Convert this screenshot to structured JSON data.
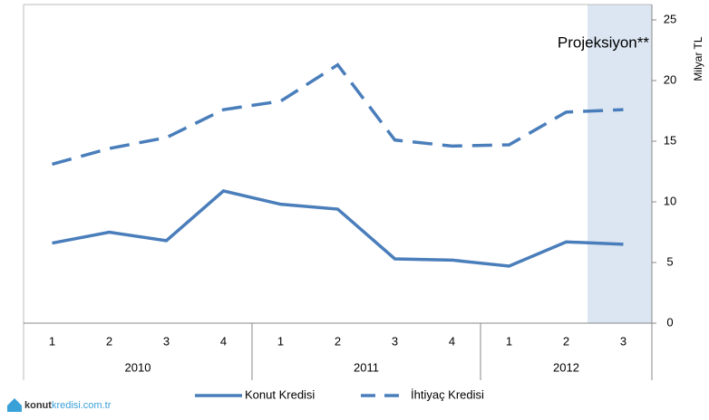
{
  "chart_data": {
    "type": "line",
    "annotation": "Projeksiyon**",
    "y_axis_label": "Milyar TL",
    "categories": [
      "1",
      "2",
      "3",
      "4",
      "1",
      "2",
      "3",
      "4",
      "1",
      "2",
      "3"
    ],
    "category_groups": [
      "2010",
      "2011",
      "2012"
    ],
    "series": [
      {
        "name": "Konut Kredisi",
        "color": "#4a7ebb",
        "dash": "solid",
        "values": [
          6.6,
          7.5,
          6.8,
          10.9,
          9.8,
          9.4,
          5.3,
          5.2,
          4.7,
          6.7,
          6.5
        ]
      },
      {
        "name": "İhtiyaç Kredisi",
        "color": "#4a7ebb",
        "dash": "dashed",
        "values": [
          13.1,
          14.4,
          15.3,
          17.6,
          18.3,
          21.3,
          15.1,
          14.6,
          14.7,
          17.4,
          17.6
        ]
      }
    ],
    "ylim": [
      0,
      25
    ],
    "yticks": [
      0,
      5,
      10,
      15,
      20,
      25
    ],
    "y_axis_side": "right",
    "grid": false,
    "legend": "bottom",
    "logo": [
      "konut",
      "kredisi",
      ".com.tr"
    ]
  }
}
